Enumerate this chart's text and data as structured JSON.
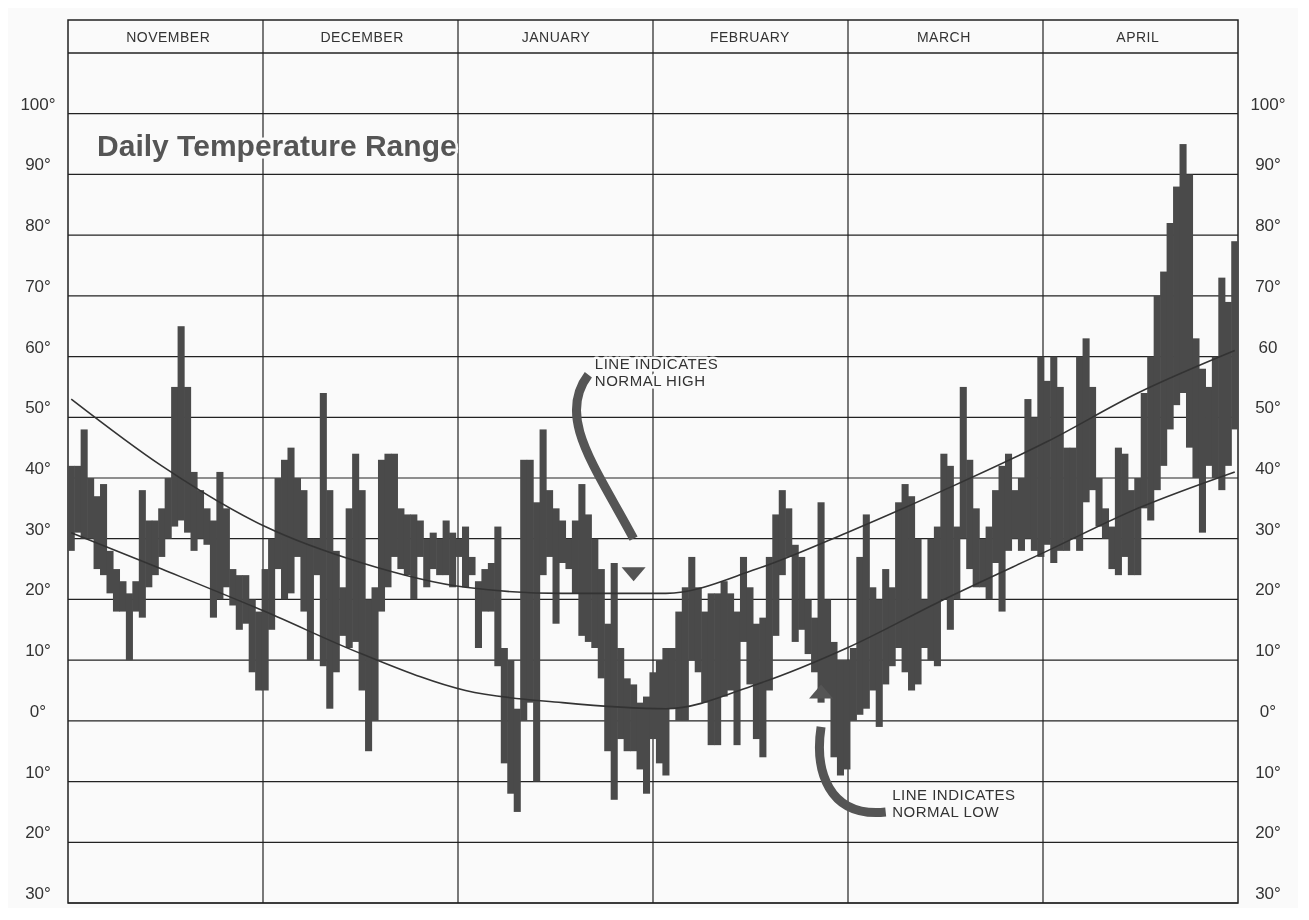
{
  "chart_data": {
    "type": "bar",
    "title": "Daily Temperature Range",
    "categories": [
      null,
      null,
      null,
      null,
      null,
      null,
      null,
      null,
      null,
      null,
      null,
      null,
      null,
      null,
      null,
      "NOVEMBER",
      null,
      null,
      null,
      null,
      null,
      null,
      null,
      null,
      null,
      null,
      null,
      null,
      null,
      null,
      null,
      null,
      null,
      null,
      null,
      null,
      null,
      null,
      null,
      null,
      null,
      null,
      null,
      null,
      null,
      "DECEMBER",
      null,
      null,
      null,
      null,
      null,
      null,
      null,
      null,
      null,
      null,
      null,
      null,
      null,
      null,
      null,
      null,
      null,
      null,
      null,
      null,
      null,
      null,
      null,
      null,
      null,
      null,
      null,
      null,
      null,
      "JANUARY",
      null,
      null,
      null,
      null,
      null,
      null,
      null,
      null,
      null,
      null,
      null,
      null,
      null,
      null,
      null,
      null,
      null,
      null,
      null,
      null,
      null,
      null,
      null,
      null,
      null,
      null,
      null,
      null,
      null,
      "FEBRUARY",
      null,
      null,
      null,
      null,
      null,
      null,
      null,
      null,
      null,
      null,
      null,
      null,
      null,
      null,
      null,
      null,
      null,
      null,
      null,
      null,
      null,
      null,
      null,
      null,
      null,
      null,
      null,
      null,
      null,
      "MARCH",
      null,
      null,
      null,
      null,
      null,
      null,
      null,
      null,
      null,
      null,
      null,
      null,
      null,
      null,
      null,
      null,
      null,
      null,
      null,
      null,
      null,
      null,
      null,
      null,
      null,
      null,
      null,
      null,
      null,
      "APRIL",
      null,
      null,
      null,
      null,
      null,
      null,
      null,
      null,
      null,
      null,
      null,
      null,
      null,
      null,
      null
    ],
    "series": [
      {
        "color": "#4a4a4a",
        "base": [
          28,
          31,
          30,
          30,
          25,
          24,
          21,
          18,
          18,
          10,
          18,
          17,
          22,
          24,
          27,
          30,
          32,
          33,
          31,
          28,
          30,
          29,
          17,
          20,
          22,
          19,
          15,
          16,
          8,
          5,
          5,
          15,
          25,
          20,
          21,
          27,
          18,
          10,
          24,
          9,
          2,
          8,
          14,
          12,
          13,
          5,
          -5,
          0,
          18,
          22,
          27,
          25,
          24,
          20,
          27,
          22,
          25,
          24,
          24,
          22,
          27,
          22,
          24,
          12,
          18,
          18,
          9,
          -7,
          -12,
          -15,
          0,
          3,
          -10,
          24,
          27,
          16,
          26,
          25,
          21,
          14,
          13,
          12,
          7,
          -5,
          -13,
          -3,
          -5,
          -5,
          -8,
          -12,
          -3,
          -7,
          -9,
          2,
          0,
          0,
          10,
          8,
          3,
          -4,
          -4,
          4,
          5,
          -4,
          13,
          6,
          -3,
          -6,
          5,
          14,
          24,
          27,
          13,
          15,
          11,
          8,
          3,
          4,
          -6,
          -9,
          -8,
          0,
          1,
          2,
          5,
          -1,
          6,
          9,
          12,
          8,
          5,
          6,
          12,
          10,
          9,
          20,
          15,
          20,
          30,
          25,
          22,
          22,
          20,
          26,
          18,
          28,
          30,
          28,
          30,
          28,
          27,
          29,
          26,
          28,
          28,
          30,
          28,
          36,
          38,
          32,
          30,
          25,
          24,
          27,
          24,
          24,
          35,
          33,
          38,
          42,
          48,
          52,
          54,
          45,
          40,
          31,
          42,
          40,
          38,
          42,
          48
        ],
        "values": [
          14,
          11,
          18,
          10,
          12,
          15,
          7,
          7,
          5,
          11,
          5,
          21,
          11,
          9,
          8,
          10,
          23,
          32,
          24,
          13,
          8,
          6,
          16,
          21,
          13,
          6,
          9,
          8,
          12,
          13,
          20,
          15,
          15,
          23,
          24,
          13,
          20,
          20,
          6,
          45,
          36,
          20,
          8,
          23,
          31,
          33,
          25,
          22,
          25,
          22,
          17,
          10,
          10,
          14,
          6,
          8,
          6,
          6,
          9,
          9,
          3,
          10,
          3,
          11,
          7,
          8,
          23,
          19,
          22,
          17,
          43,
          40,
          46,
          24,
          11,
          19,
          7,
          5,
          12,
          25,
          21,
          18,
          18,
          21,
          39,
          15,
          12,
          11,
          11,
          16,
          11,
          17,
          21,
          10,
          18,
          22,
          17,
          14,
          15,
          25,
          25,
          19,
          16,
          22,
          14,
          16,
          19,
          23,
          22,
          20,
          14,
          8,
          16,
          12,
          9,
          9,
          33,
          16,
          19,
          19,
          18,
          12,
          26,
          32,
          17,
          21,
          19,
          13,
          24,
          31,
          32,
          24,
          8,
          20,
          23,
          24,
          27,
          12,
          25,
          18,
          13,
          8,
          12,
          12,
          24,
          16,
          8,
          12,
          23,
          22,
          33,
          27,
          34,
          27,
          17,
          15,
          32,
          27,
          17,
          8,
          5,
          7,
          21,
          17,
          14,
          16,
          19,
          27,
          32,
          32,
          34,
          36,
          41,
          45,
          23,
          27,
          13,
          20,
          35,
          27,
          31
        ]
      },
      {
        "type": "line",
        "color": "#333333",
        "values": [
          53,
          null,
          null,
          null,
          null,
          null,
          null,
          null,
          null,
          null,
          null,
          null,
          null,
          null,
          42,
          null,
          null,
          null,
          null,
          null,
          null,
          null,
          null,
          null,
          null,
          null,
          null,
          null,
          null,
          null,
          32,
          null,
          null,
          null,
          null,
          null,
          null,
          null,
          null,
          null,
          null,
          null,
          null,
          null,
          null,
          26,
          null,
          null,
          null,
          null,
          null,
          null,
          null,
          null,
          null,
          null,
          null,
          null,
          null,
          null,
          null,
          22,
          null,
          null,
          null,
          null,
          null,
          null,
          null,
          null,
          null,
          null,
          null,
          null,
          null,
          null,
          21,
          null,
          null,
          null,
          null,
          null,
          null,
          null,
          null,
          null,
          null,
          null,
          null,
          null,
          null,
          null,
          21,
          null,
          null,
          null,
          null,
          null,
          null,
          null,
          null,
          null,
          null,
          null,
          null,
          null,
          25,
          null,
          null,
          null,
          null,
          null,
          null,
          null,
          null,
          null,
          null,
          null,
          null,
          null,
          31,
          null,
          null,
          null,
          null,
          null,
          null,
          null,
          null,
          null,
          null,
          null,
          null,
          null,
          null,
          38,
          null,
          null,
          null,
          null,
          null,
          null,
          null,
          null,
          null,
          null,
          null,
          null,
          null,
          null,
          null,
          46,
          null,
          null,
          null,
          null,
          null,
          null,
          null,
          null,
          null,
          null,
          null,
          null,
          null,
          54,
          null,
          null,
          null,
          null,
          null,
          null,
          null,
          null,
          null,
          null,
          null,
          null,
          null,
          null,
          61
        ]
      },
      {
        "type": "line",
        "color": "#333333",
        "values": [
          31,
          null,
          null,
          null,
          null,
          null,
          null,
          null,
          null,
          null,
          null,
          null,
          null,
          null,
          25,
          null,
          null,
          null,
          null,
          null,
          null,
          null,
          null,
          null,
          null,
          null,
          null,
          null,
          null,
          null,
          18,
          null,
          null,
          null,
          null,
          null,
          null,
          null,
          null,
          null,
          null,
          null,
          null,
          null,
          null,
          11,
          null,
          null,
          null,
          null,
          null,
          null,
          null,
          null,
          null,
          null,
          null,
          null,
          null,
          null,
          null,
          5,
          null,
          null,
          null,
          null,
          null,
          null,
          null,
          null,
          null,
          null,
          null,
          null,
          null,
          null,
          3,
          null,
          null,
          null,
          null,
          null,
          null,
          null,
          null,
          null,
          null,
          null,
          null,
          null,
          null,
          null,
          2,
          null,
          null,
          null,
          null,
          null,
          null,
          null,
          null,
          null,
          null,
          null,
          null,
          null,
          6,
          null,
          null,
          null,
          null,
          null,
          null,
          null,
          null,
          null,
          null,
          null,
          null,
          null,
          12,
          null,
          null,
          null,
          null,
          null,
          null,
          null,
          null,
          null,
          null,
          null,
          null,
          null,
          null,
          20,
          null,
          null,
          null,
          null,
          null,
          null,
          null,
          null,
          null,
          null,
          null,
          null,
          null,
          null,
          null,
          28,
          null,
          null,
          null,
          null,
          null,
          null,
          null,
          null,
          null,
          null,
          null,
          null,
          null,
          35,
          null,
          null,
          null,
          null,
          null,
          null,
          null,
          null,
          null,
          null,
          null,
          null,
          null,
          null,
          41
        ]
      }
    ],
    "ylim": [
      -30,
      110
    ],
    "yticks": [
      {
        "value": -30,
        "label": "30°"
      },
      {
        "value": -20,
        "label": "20°"
      },
      {
        "value": -10,
        "label": "10°"
      },
      {
        "value": 0,
        "label": "0°"
      },
      {
        "value": 10,
        "label": "10°"
      },
      {
        "value": 20,
        "label": "20°"
      },
      {
        "value": 30,
        "label": "30°"
      },
      {
        "value": 40,
        "label": "40°"
      },
      {
        "value": 50,
        "label": "50°"
      },
      {
        "value": 60,
        "label": "60°"
      },
      {
        "value": 70,
        "label": "70°"
      },
      {
        "value": 80,
        "label": "80°"
      },
      {
        "value": 90,
        "label": "90°"
      },
      {
        "value": 100,
        "label": "100°"
      }
    ],
    "y2lim": [
      -30,
      110
    ],
    "y2ticks": [
      {
        "value": -30,
        "label": "30°"
      },
      {
        "value": -20,
        "label": "20°"
      },
      {
        "value": -10,
        "label": "10°"
      },
      {
        "value": 0,
        "label": "0°"
      },
      {
        "value": 10,
        "label": "10°"
      },
      {
        "value": 20,
        "label": "20°"
      },
      {
        "value": 30,
        "label": "30°"
      },
      {
        "value": 40,
        "label": "40°"
      },
      {
        "value": 50,
        "label": "50°"
      },
      {
        "value": 60,
        "label": "60"
      },
      {
        "value": 70,
        "label": "70°"
      },
      {
        "value": 80,
        "label": "80°"
      },
      {
        "value": 90,
        "label": "90°"
      },
      {
        "value": 100,
        "label": "100°"
      }
    ],
    "grid": true,
    "annotations": [
      "LINE INDICATES\nNORMAL HIGH",
      "LINE INDICATES\nNORMAL LOW"
    ]
  }
}
